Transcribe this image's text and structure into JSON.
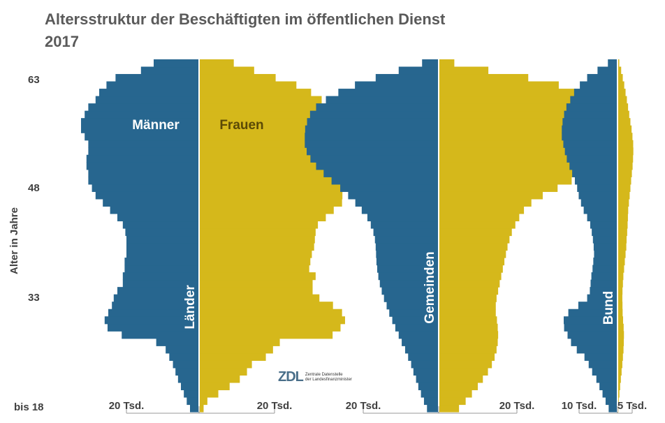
{
  "title_line1": "Altersstruktur der Beschäftigten im öffentlichen Dienst",
  "title_line2": "2017",
  "y_axis_label": "Alter in Jahre",
  "y_ticks": [
    "63",
    "48",
    "33",
    "bis 18"
  ],
  "legend": {
    "men": "Männer",
    "women": "Frauen"
  },
  "colors": {
    "men": "#27668f",
    "women": "#d5b81b",
    "women_text": "#5b4a06",
    "divider": "#ffffff"
  },
  "logo": {
    "mark": "ZDL",
    "line1": "Zentrale Datenstelle",
    "line2": "der Landesfinanzminister"
  },
  "chart_data": [
    {
      "type": "population-pyramid",
      "segment": "Länder",
      "unit": "Tsd.",
      "age_min": 18,
      "age_max": 65,
      "scale_ticks": {
        "men": "20 Tsd.",
        "women": "20 Tsd."
      },
      "men_value_at_tick": 20,
      "women_value_at_tick": 20,
      "men": [
        2.5,
        3.4,
        4.2,
        5.0,
        5.8,
        6.5,
        7.2,
        8.2,
        9.2,
        11.8,
        21.3,
        25.2,
        26.0,
        25.0,
        24.0,
        23.5,
        22.5,
        21.0,
        21.0,
        20.5,
        20.5,
        20.0,
        20.0,
        20.0,
        20.3,
        21.0,
        22.5,
        24.5,
        26.5,
        28.5,
        29.5,
        30.5,
        30.5,
        31.0,
        31.0,
        30.5,
        30.5,
        31.5,
        32.5,
        32.5,
        31.5,
        30.5,
        28.5,
        27.5,
        25.5,
        23.0,
        16.0,
        12.5
      ],
      "women": [
        1.2,
        2.2,
        5.1,
        8.1,
        10.8,
        12.7,
        14.0,
        17.7,
        19.6,
        21.4,
        35.4,
        37.5,
        38.7,
        37.9,
        35.5,
        31.9,
        30.1,
        30.1,
        30.9,
        29.2,
        29.5,
        29.9,
        30.5,
        30.7,
        30.9,
        31.5,
        33.6,
        35.7,
        37.9,
        38.0,
        38.2,
        37.7,
        38.3,
        38.4,
        38.6,
        38.5,
        38.1,
        37.7,
        37.5,
        37.2,
        37.9,
        35.1,
        32.5,
        29.7,
        25.8,
        20.3,
        14.6,
        9.2
      ]
    },
    {
      "type": "population-pyramid",
      "segment": "Gemeinden",
      "unit": "Tsd.",
      "age_min": 18,
      "age_max": 65,
      "scale_ticks": {
        "men": "20 Tsd.",
        "women": "20 Tsd."
      },
      "men_value_at_tick": 20,
      "women_value_at_tick": 20,
      "men": [
        3.1,
        3.9,
        4.7,
        5.4,
        6.0,
        6.7,
        7.3,
        8.1,
        8.9,
        9.8,
        10.6,
        11.5,
        12.3,
        13.1,
        13.8,
        14.5,
        15.1,
        15.6,
        16.0,
        16.3,
        16.5,
        16.6,
        16.7,
        16.9,
        17.3,
        18.0,
        18.9,
        20.4,
        22.1,
        24.0,
        26.1,
        28.4,
        30.5,
        32.5,
        34.0,
        35.0,
        35.5,
        35.5,
        35.4,
        34.9,
        34.1,
        32.5,
        29.9,
        26.6,
        22.2,
        16.7,
        10.6,
        4.4
      ],
      "women": [
        5.2,
        6.9,
        8.5,
        10.0,
        11.3,
        12.6,
        13.6,
        14.3,
        14.8,
        15.1,
        15.2,
        15.1,
        14.9,
        14.6,
        14.6,
        14.8,
        15.2,
        15.6,
        16.0,
        16.4,
        16.8,
        17.2,
        17.6,
        18.1,
        18.7,
        19.6,
        20.6,
        21.8,
        23.7,
        26.6,
        30.4,
        34.0,
        37.2,
        39.7,
        41.4,
        42.3,
        42.6,
        43.2,
        42.9,
        42.2,
        40.9,
        39.2,
        37.4,
        35.0,
        30.7,
        22.9,
        12.7,
        4.0
      ]
    },
    {
      "type": "population-pyramid",
      "segment": "Bund",
      "unit": "Tsd.",
      "age_min": 18,
      "age_max": 65,
      "scale_ticks": {
        "men": "10 Tsd.",
        "women": "5 Tsd."
      },
      "men_value_at_tick": 10,
      "women_value_at_tick": 5,
      "men": [
        2.3,
        3.1,
        3.9,
        4.7,
        5.5,
        6.6,
        7.5,
        8.6,
        10.6,
        12.1,
        13.0,
        13.9,
        14.0,
        12.8,
        10.2,
        7.9,
        7.2,
        7.0,
        6.8,
        6.5,
        6.3,
        6.1,
        6.2,
        6.4,
        6.7,
        7.1,
        7.9,
        8.8,
        9.5,
        10.1,
        10.5,
        11.1,
        11.8,
        12.5,
        13.2,
        13.7,
        14.1,
        14.5,
        14.5,
        14.3,
        13.9,
        13.3,
        12.3,
        11.3,
        9.8,
        7.9,
        5.2,
        2.5
      ],
      "women": [
        0.3,
        0.45,
        0.65,
        0.9,
        1.15,
        1.4,
        1.65,
        1.85,
        2.05,
        2.15,
        2.2,
        2.1,
        1.9,
        1.75,
        1.7,
        1.65,
        1.7,
        1.85,
        2.0,
        2.25,
        2.5,
        2.75,
        3.0,
        3.1,
        3.3,
        3.45,
        3.55,
        3.65,
        3.9,
        4.15,
        4.4,
        4.65,
        4.9,
        5.15,
        5.3,
        5.4,
        5.35,
        5.1,
        4.8,
        4.4,
        4.0,
        3.6,
        3.2,
        2.75,
        2.3,
        1.8,
        1.25,
        0.6
      ]
    }
  ]
}
